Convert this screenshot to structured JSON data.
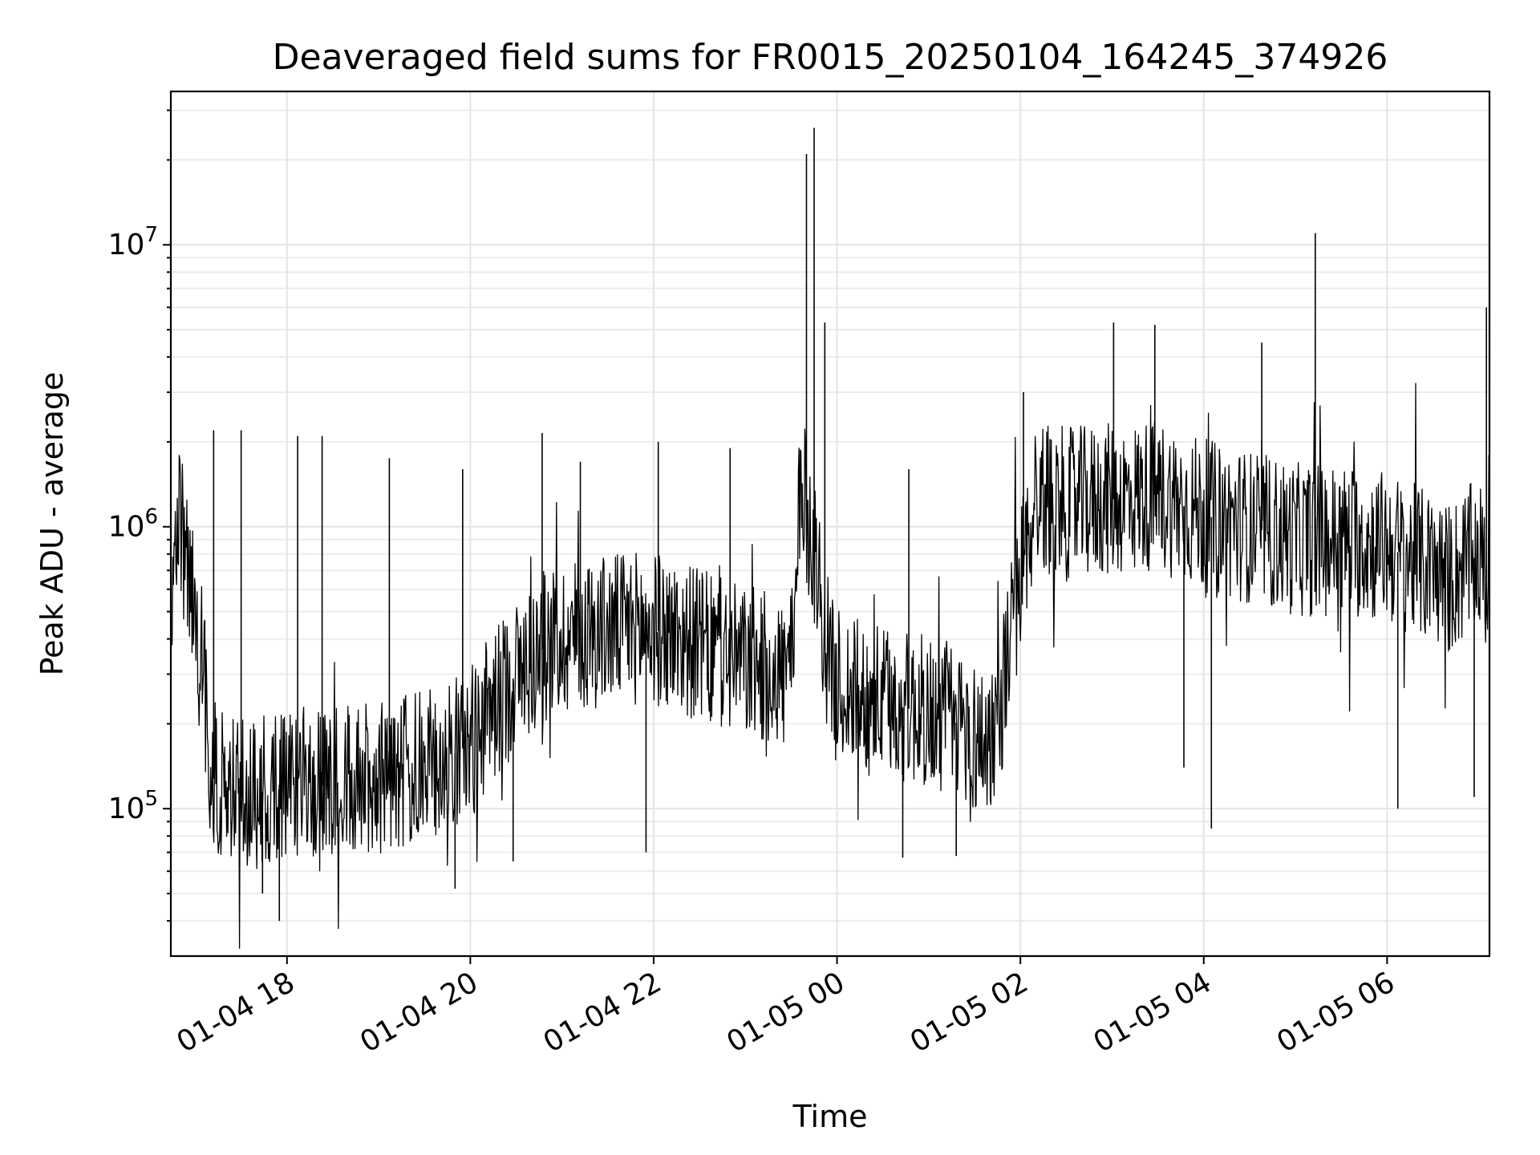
{
  "chart_data": {
    "type": "line",
    "title": "Deaveraged field sums for FR0015_20250104_164245_374926",
    "xlabel": "Time",
    "ylabel": "Peak ADU - average",
    "yscale": "log",
    "xlim": [
      "2025-01-04 16:44",
      "2025-01-05 07:07"
    ],
    "ylim": [
      30000,
      35000000
    ],
    "grid": true,
    "x_ticks": [
      {
        "label": "01-04 18",
        "value": "2025-01-04 18:00"
      },
      {
        "label": "01-04 20",
        "value": "2025-01-04 20:00"
      },
      {
        "label": "01-04 22",
        "value": "2025-01-04 22:00"
      },
      {
        "label": "01-05 00",
        "value": "2025-01-05 00:00"
      },
      {
        "label": "01-05 02",
        "value": "2025-01-05 02:00"
      },
      {
        "label": "01-05 04",
        "value": "2025-01-05 04:00"
      },
      {
        "label": "01-05 06",
        "value": "2025-01-05 06:00"
      }
    ],
    "y_ticks": [
      {
        "base": "10",
        "exp": "5",
        "value": 100000
      },
      {
        "base": "10",
        "exp": "6",
        "value": 1000000
      },
      {
        "base": "10",
        "exp": "7",
        "value": 10000000
      }
    ],
    "series": [
      {
        "color": "#000000",
        "x": [
          "2025-01-04 16:44",
          "2025-01-04 16:48",
          "2025-01-04 16:52",
          "2025-01-04 16:58",
          "2025-01-04 17:04",
          "2025-01-04 17:10",
          "2025-01-04 17:20",
          "2025-01-04 17:30",
          "2025-01-04 17:45",
          "2025-01-04 18:00",
          "2025-01-04 18:20",
          "2025-01-04 18:40",
          "2025-01-04 19:00",
          "2025-01-04 19:20",
          "2025-01-04 19:40",
          "2025-01-04 20:00",
          "2025-01-04 20:15",
          "2025-01-04 20:30",
          "2025-01-04 20:50",
          "2025-01-04 21:10",
          "2025-01-04 21:30",
          "2025-01-04 21:50",
          "2025-01-04 22:10",
          "2025-01-04 22:30",
          "2025-01-04 22:50",
          "2025-01-04 23:10",
          "2025-01-04 23:25",
          "2025-01-04 23:32",
          "2025-01-04 23:36",
          "2025-01-04 23:40",
          "2025-01-04 23:46",
          "2025-01-04 23:52",
          "2025-01-04 23:58",
          "2025-01-05 00:15",
          "2025-01-05 00:40",
          "2025-01-05 01:00",
          "2025-01-05 01:20",
          "2025-01-05 01:35",
          "2025-01-05 01:45",
          "2025-01-05 01:55",
          "2025-01-05 02:10",
          "2025-01-05 02:30",
          "2025-01-05 03:00",
          "2025-01-05 03:30",
          "2025-01-05 04:00",
          "2025-01-05 04:30",
          "2025-01-05 05:00",
          "2025-01-05 05:30",
          "2025-01-05 06:00",
          "2025-01-05 06:20",
          "2025-01-05 06:40",
          "2025-01-05 07:00",
          "2025-01-05 07:07"
        ],
        "values": [
          400000,
          1000000,
          900000,
          550000,
          400000,
          130000,
          120000,
          110000,
          115000,
          125000,
          120000,
          125000,
          130000,
          135000,
          145000,
          170000,
          230000,
          300000,
          380000,
          420000,
          430000,
          440000,
          420000,
          380000,
          340000,
          320000,
          300000,
          330000,
          1500000,
          1100000,
          800000,
          400000,
          280000,
          250000,
          230000,
          220000,
          200000,
          170000,
          200000,
          450000,
          1300000,
          1200000,
          1250000,
          1300000,
          1100000,
          1000000,
          900000,
          900000,
          850000,
          750000,
          650000,
          800000,
          600000
        ]
      }
    ],
    "spikes": [
      {
        "x": "2025-01-04 17:12",
        "value": 2200000
      },
      {
        "x": "2025-01-04 17:30",
        "value": 2200000
      },
      {
        "x": "2025-01-04 17:44",
        "value": 50000
      },
      {
        "x": "2025-01-04 17:55",
        "value": 40000
      },
      {
        "x": "2025-01-04 18:07",
        "value": 2100000
      },
      {
        "x": "2025-01-04 18:23",
        "value": 2100000
      },
      {
        "x": "2025-01-04 19:07",
        "value": 1750000
      },
      {
        "x": "2025-01-04 19:50",
        "value": 52000
      },
      {
        "x": "2025-01-04 19:55",
        "value": 1600000
      },
      {
        "x": "2025-01-04 20:28",
        "value": 65000
      },
      {
        "x": "2025-01-04 20:47",
        "value": 2150000
      },
      {
        "x": "2025-01-04 21:12",
        "value": 1700000
      },
      {
        "x": "2025-01-04 21:55",
        "value": 70000
      },
      {
        "x": "2025-01-04 22:03",
        "value": 2000000
      },
      {
        "x": "2025-01-04 22:50",
        "value": 1900000
      },
      {
        "x": "2025-01-04 23:40",
        "value": 21000000
      },
      {
        "x": "2025-01-04 23:45",
        "value": 26000000
      },
      {
        "x": "2025-01-04 23:52",
        "value": 5300000
      },
      {
        "x": "2025-01-05 00:43",
        "value": 67000
      },
      {
        "x": "2025-01-05 00:47",
        "value": 1600000
      },
      {
        "x": "2025-01-05 01:18",
        "value": 68000
      },
      {
        "x": "2025-01-05 02:02",
        "value": 3000000
      },
      {
        "x": "2025-01-05 03:01",
        "value": 5300000
      },
      {
        "x": "2025-01-05 03:28",
        "value": 5200000
      },
      {
        "x": "2025-01-05 03:47",
        "value": 140000
      },
      {
        "x": "2025-01-05 04:05",
        "value": 85000
      },
      {
        "x": "2025-01-05 04:38",
        "value": 4500000
      },
      {
        "x": "2025-01-05 05:13",
        "value": 11000000
      },
      {
        "x": "2025-01-05 06:07",
        "value": 100000
      },
      {
        "x": "2025-01-05 06:57",
        "value": 110000
      },
      {
        "x": "2025-01-05 07:05",
        "value": 6000000
      }
    ]
  }
}
